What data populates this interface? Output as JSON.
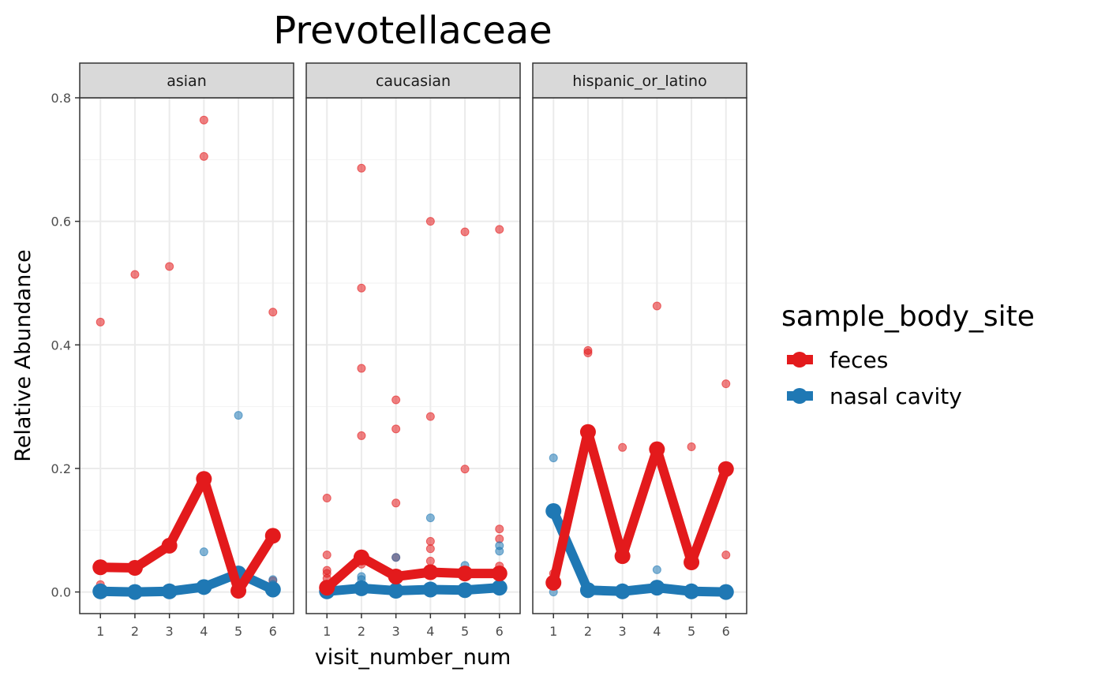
{
  "chart_data": {
    "type": "line",
    "title": "Prevotellaceae",
    "xlabel": "visit_number_num",
    "ylabel": "Relative Abundance",
    "ylim": [
      -0.035,
      0.8
    ],
    "xlim": [
      0.4,
      6.6
    ],
    "y_ticks": [
      "0.0",
      "0.2",
      "0.4",
      "0.6",
      "0.8"
    ],
    "x_ticks": [
      "1",
      "2",
      "3",
      "4",
      "5",
      "6"
    ],
    "grid": true,
    "legend": {
      "title": "sample_body_site",
      "position": "right",
      "entries": [
        "feces",
        "nasal cavity"
      ]
    },
    "colors": {
      "feces": "#E31A1C",
      "nasal cavity": "#1F78B4"
    },
    "panels": [
      {
        "label": "asian",
        "series": [
          {
            "name": "feces",
            "mean": [
              [
                1,
                0.04
              ],
              [
                2,
                0.039
              ],
              [
                3,
                0.075
              ],
              [
                4,
                0.183
              ],
              [
                5,
                0.002
              ],
              [
                6,
                0.091
              ]
            ],
            "points": [
              [
                1,
                0.437
              ],
              [
                1,
                0.012
              ],
              [
                2,
                0.514
              ],
              [
                3,
                0.527
              ],
              [
                4,
                0.764
              ],
              [
                4,
                0.705
              ],
              [
                4,
                0.005
              ],
              [
                5,
                0.003
              ],
              [
                6,
                0.453
              ],
              [
                6,
                0.018
              ]
            ]
          },
          {
            "name": "nasal cavity",
            "mean": [
              [
                1,
                0.001
              ],
              [
                2,
                0.0
              ],
              [
                3,
                0.001
              ],
              [
                4,
                0.008
              ],
              [
                5,
                0.03
              ],
              [
                6,
                0.004
              ]
            ],
            "points": [
              [
                1,
                0.003
              ],
              [
                2,
                0.001
              ],
              [
                3,
                0.002
              ],
              [
                4,
                0.065
              ],
              [
                4,
                0.003
              ],
              [
                5,
                0.286
              ],
              [
                6,
                0.02
              ],
              [
                6,
                0.012
              ]
            ]
          }
        ]
      },
      {
        "label": "caucasian",
        "series": [
          {
            "name": "feces",
            "mean": [
              [
                1,
                0.007
              ],
              [
                2,
                0.056
              ],
              [
                3,
                0.025
              ],
              [
                4,
                0.032
              ],
              [
                5,
                0.03
              ],
              [
                6,
                0.03
              ]
            ],
            "points": [
              [
                1,
                0.152
              ],
              [
                1,
                0.06
              ],
              [
                1,
                0.035
              ],
              [
                1,
                0.03
              ],
              [
                1,
                0.022
              ],
              [
                2,
                0.686
              ],
              [
                2,
                0.492
              ],
              [
                2,
                0.362
              ],
              [
                2,
                0.253
              ],
              [
                2,
                0.045
              ],
              [
                3,
                0.311
              ],
              [
                3,
                0.264
              ],
              [
                3,
                0.144
              ],
              [
                3,
                0.056
              ],
              [
                4,
                0.6
              ],
              [
                4,
                0.284
              ],
              [
                4,
                0.082
              ],
              [
                4,
                0.07
              ],
              [
                4,
                0.05
              ],
              [
                5,
                0.583
              ],
              [
                5,
                0.199
              ],
              [
                6,
                0.587
              ],
              [
                6,
                0.102
              ],
              [
                6,
                0.086
              ],
              [
                6,
                0.042
              ]
            ]
          },
          {
            "name": "nasal cavity",
            "mean": [
              [
                1,
                0.001
              ],
              [
                2,
                0.006
              ],
              [
                3,
                0.002
              ],
              [
                4,
                0.004
              ],
              [
                5,
                0.003
              ],
              [
                6,
                0.007
              ]
            ],
            "points": [
              [
                1,
                0.005
              ],
              [
                2,
                0.025
              ],
              [
                2,
                0.02
              ],
              [
                3,
                0.056
              ],
              [
                4,
                0.12
              ],
              [
                4,
                0.01
              ],
              [
                5,
                0.043
              ],
              [
                6,
                0.075
              ],
              [
                6,
                0.066
              ],
              [
                6,
                0.01
              ]
            ]
          }
        ]
      },
      {
        "label": "hispanic_or_latino",
        "series": [
          {
            "name": "feces",
            "mean": [
              [
                1,
                0.015
              ],
              [
                2,
                0.259
              ],
              [
                3,
                0.058
              ],
              [
                4,
                0.231
              ],
              [
                5,
                0.048
              ],
              [
                6,
                0.199
              ]
            ],
            "points": [
              [
                1,
                0.03
              ],
              [
                2,
                0.391
              ],
              [
                2,
                0.387
              ],
              [
                3,
                0.234
              ],
              [
                4,
                0.463
              ],
              [
                5,
                0.235
              ],
              [
                6,
                0.337
              ],
              [
                6,
                0.06
              ]
            ]
          },
          {
            "name": "nasal cavity",
            "mean": [
              [
                1,
                0.131
              ],
              [
                2,
                0.003
              ],
              [
                3,
                0.001
              ],
              [
                4,
                0.007
              ],
              [
                5,
                0.001
              ],
              [
                6,
                0.0
              ]
            ],
            "points": [
              [
                1,
                0.217
              ],
              [
                1,
                0.0
              ],
              [
                4,
                0.036
              ]
            ]
          }
        ]
      }
    ]
  }
}
